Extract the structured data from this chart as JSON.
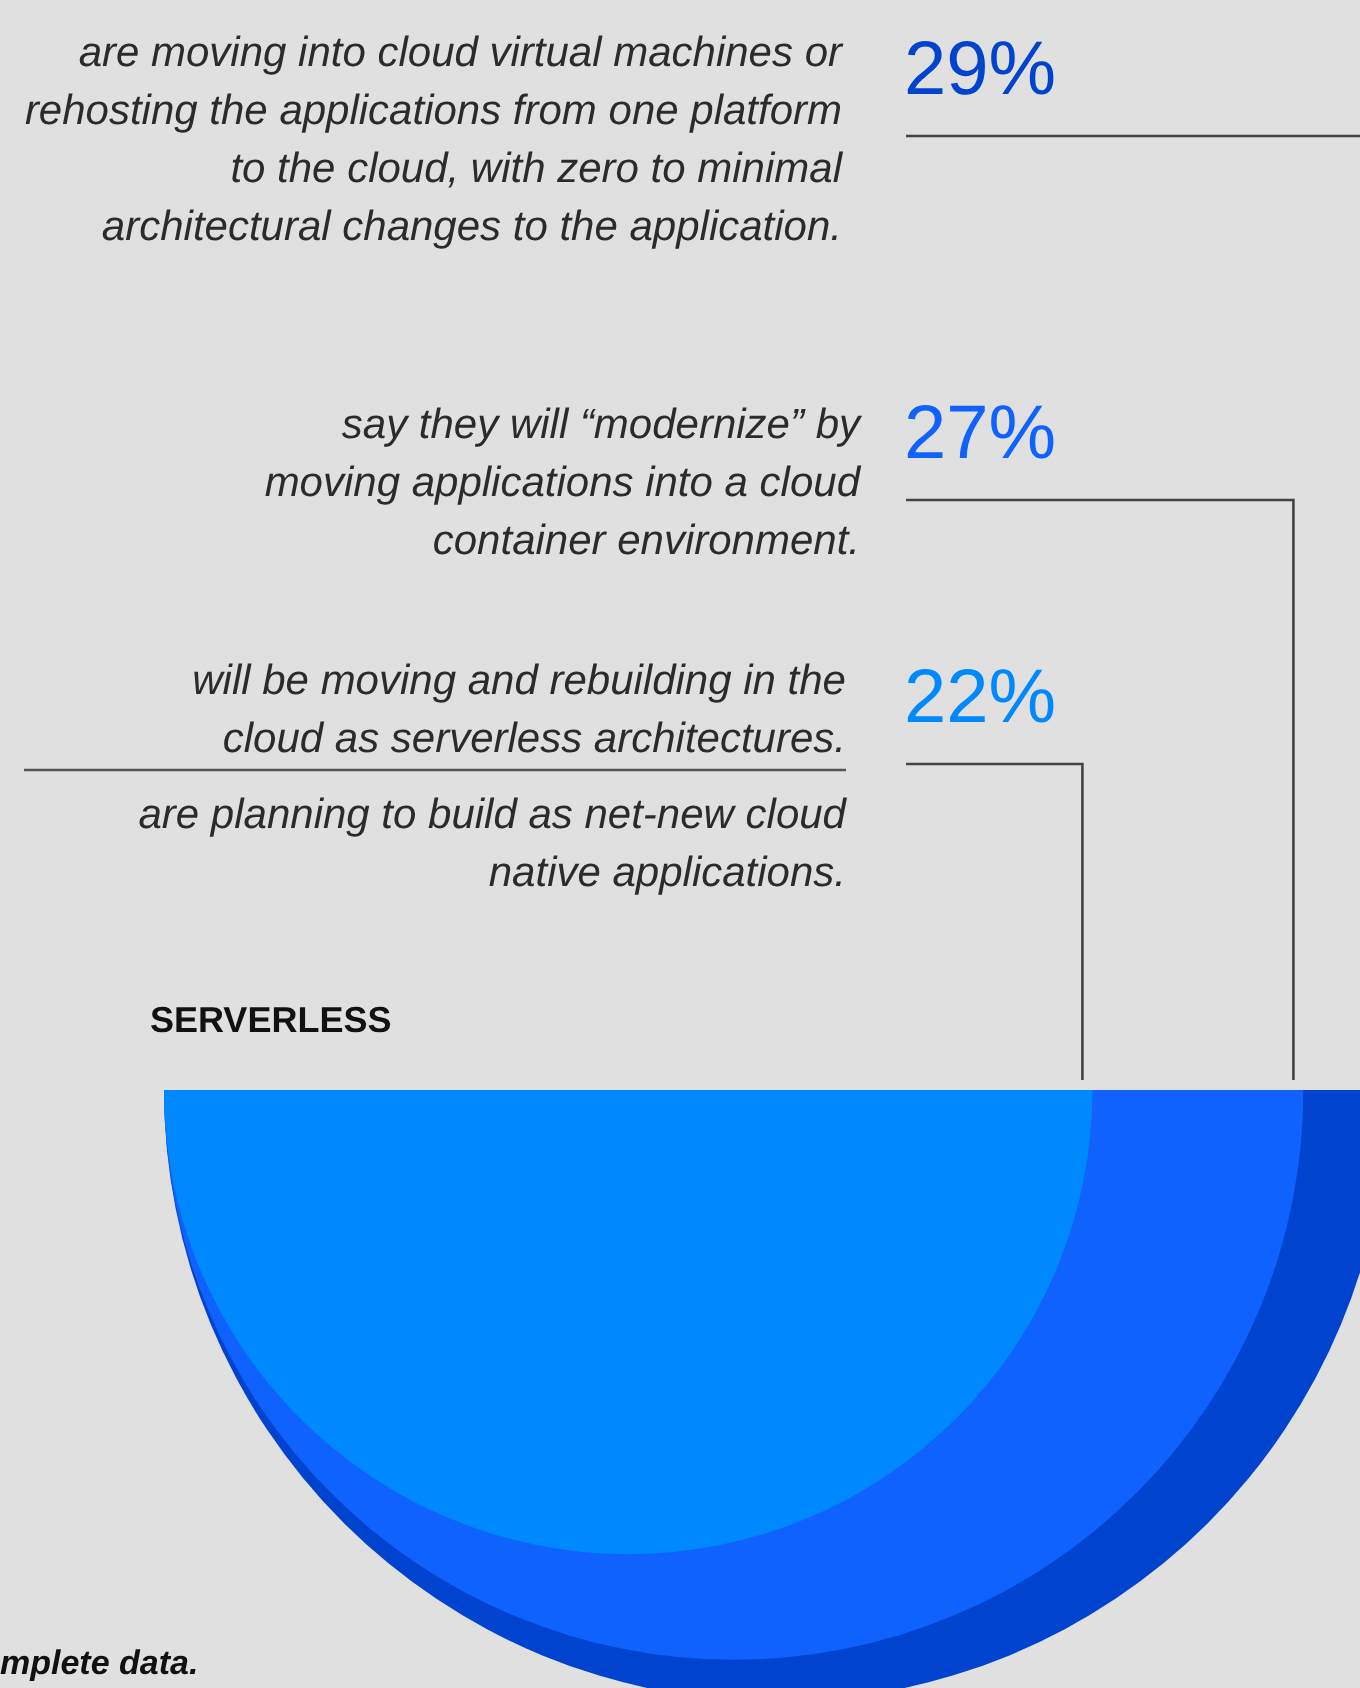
{
  "chart_data": {
    "type": "other",
    "categories": [
      "are moving into cloud virtual machines or rehosting the applications from one platform to the cloud, with zero to minimal architectural changes to the application.",
      "say they will “modernize” by moving applications into a cloud container environment.",
      "will be moving and rebuilding in the cloud as serverless architectures.",
      "are planning to build as net-new cloud native applications."
    ],
    "values": [
      29,
      27,
      22,
      null
    ],
    "value_labels": [
      "29%",
      "27%",
      "22%",
      null
    ],
    "colors": [
      "#0043ce",
      "#0f62fe",
      "#0088ff",
      null
    ],
    "annotations": [
      "SERVERLESS",
      "mplete data."
    ]
  }
}
